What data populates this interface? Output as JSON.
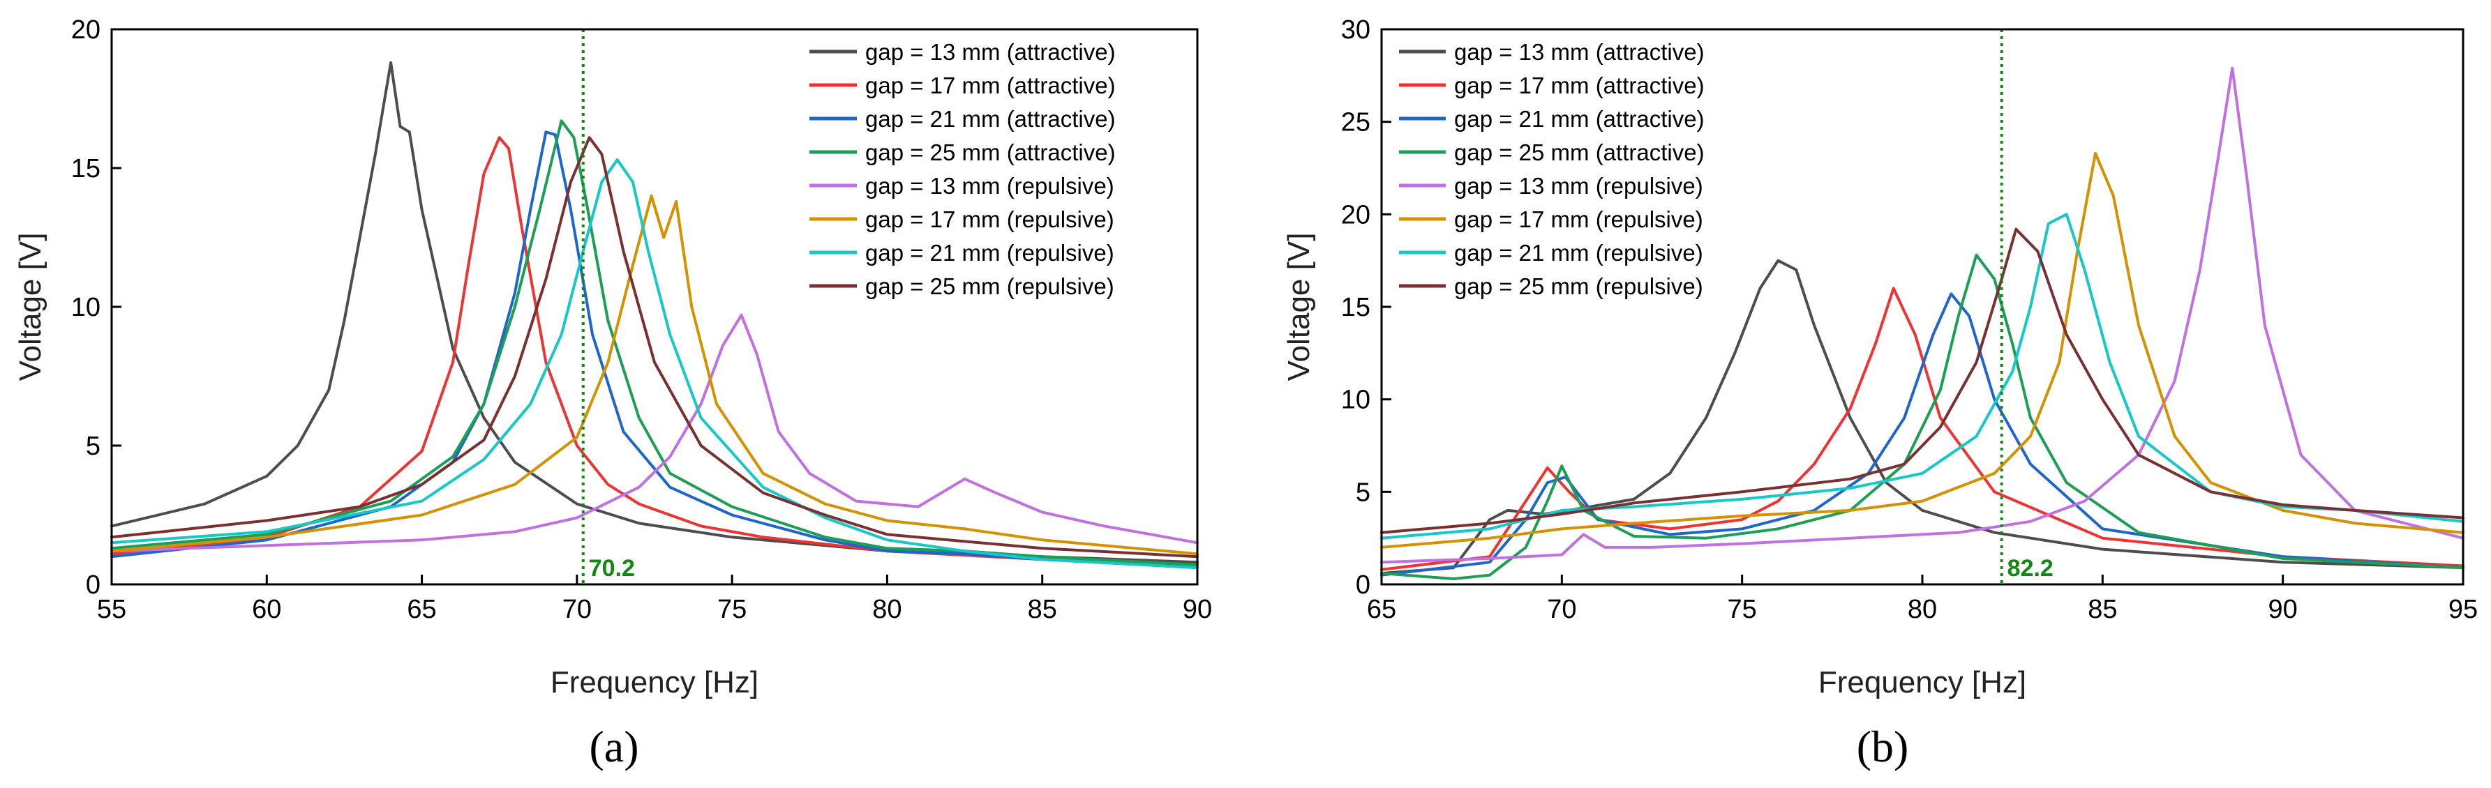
{
  "chart_data": [
    {
      "id": "a",
      "type": "line",
      "panel_label": "(a)",
      "xlabel": "Frequency [Hz]",
      "ylabel": "Voltage [V]",
      "xlim": [
        55,
        90
      ],
      "ylim": [
        0,
        20
      ],
      "xticks": [
        55,
        60,
        65,
        70,
        75,
        80,
        85,
        90
      ],
      "yticks": [
        0,
        5,
        10,
        15,
        20
      ],
      "legend_position": "top-right",
      "vline": {
        "x": 70.2,
        "label": "70.2",
        "color": "#118811"
      },
      "series": [
        {
          "name": "gap = 13 mm (attractive)",
          "color": "#4d4d4d",
          "x": [
            55,
            58,
            60,
            61,
            62,
            62.5,
            63,
            63.5,
            64,
            64.3,
            64.6,
            65,
            66,
            67,
            68,
            70,
            72,
            75,
            80,
            85,
            90
          ],
          "y": [
            2.1,
            2.9,
            3.9,
            5.0,
            7.0,
            9.5,
            12.5,
            15.5,
            18.8,
            16.5,
            16.3,
            13.5,
            8.5,
            6.0,
            4.4,
            2.9,
            2.2,
            1.7,
            1.2,
            1.0,
            0.8
          ]
        },
        {
          "name": "gap = 17 mm (attractive)",
          "color": "#ee3333",
          "x": [
            55,
            60,
            63,
            65,
            66,
            66.5,
            67,
            67.5,
            67.8,
            68.2,
            69,
            70,
            71,
            72,
            74,
            76,
            80,
            85,
            90
          ],
          "y": [
            1.1,
            1.7,
            2.8,
            4.8,
            8.0,
            11.5,
            14.8,
            16.1,
            15.7,
            13.0,
            8.0,
            5.0,
            3.6,
            2.9,
            2.1,
            1.7,
            1.2,
            0.9,
            0.7
          ]
        },
        {
          "name": "gap = 21 mm (attractive)",
          "color": "#1f66cc",
          "x": [
            55,
            60,
            64,
            66,
            67,
            68,
            68.5,
            69,
            69.3,
            69.8,
            70.5,
            71.5,
            73,
            75,
            78,
            80,
            82.5,
            85,
            90
          ],
          "y": [
            1.0,
            1.6,
            2.8,
            4.4,
            6.5,
            10.5,
            13.5,
            16.3,
            16.2,
            13.5,
            9.0,
            5.5,
            3.5,
            2.5,
            1.6,
            1.2,
            1.1,
            0.9,
            0.6
          ]
        },
        {
          "name": "gap = 25 mm (attractive)",
          "color": "#1a9f55",
          "x": [
            55,
            60,
            64,
            66,
            67,
            68,
            68.8,
            69.5,
            69.9,
            70.3,
            71,
            72,
            73,
            75,
            78,
            80,
            82.5,
            85,
            90
          ],
          "y": [
            1.3,
            1.8,
            3.0,
            4.6,
            6.5,
            10.0,
            13.5,
            16.7,
            16.1,
            13.8,
            9.5,
            6.0,
            4.0,
            2.8,
            1.7,
            1.3,
            1.2,
            1.0,
            0.7
          ]
        },
        {
          "name": "gap = 13 mm (repulsive)",
          "color": "#c070e0",
          "x": [
            55,
            60,
            65,
            68,
            70,
            72,
            73,
            74,
            74.7,
            75.3,
            75.8,
            76.5,
            77.5,
            79,
            81,
            82.5,
            83.5,
            85,
            87,
            90
          ],
          "y": [
            1.2,
            1.4,
            1.6,
            1.9,
            2.4,
            3.5,
            4.6,
            6.5,
            8.6,
            9.7,
            8.3,
            5.5,
            4.0,
            3.0,
            2.8,
            3.8,
            3.3,
            2.6,
            2.1,
            1.5
          ]
        },
        {
          "name": "gap = 17 mm (repulsive)",
          "color": "#d49100",
          "x": [
            55,
            60,
            65,
            68,
            70,
            71,
            71.8,
            72.4,
            72.8,
            73.2,
            73.7,
            74.5,
            76,
            78,
            80,
            82.5,
            85,
            90
          ],
          "y": [
            1.2,
            1.7,
            2.5,
            3.6,
            5.3,
            8.0,
            11.5,
            14.0,
            12.5,
            13.8,
            10.0,
            6.5,
            4.0,
            2.9,
            2.3,
            2.0,
            1.6,
            1.1
          ]
        },
        {
          "name": "gap = 21 mm (repulsive)",
          "color": "#16c8c8",
          "x": [
            55,
            60,
            65,
            67,
            68.5,
            69.5,
            70.2,
            70.8,
            71.3,
            71.8,
            72.3,
            73,
            74,
            76,
            78,
            80,
            82.5,
            85,
            90
          ],
          "y": [
            1.5,
            1.9,
            3.0,
            4.5,
            6.5,
            9.0,
            12.0,
            14.5,
            15.3,
            14.5,
            12.0,
            9.0,
            6.0,
            3.5,
            2.4,
            1.6,
            1.2,
            0.9,
            0.6
          ]
        },
        {
          "name": "gap = 25 mm (repulsive)",
          "color": "#7a3030",
          "x": [
            55,
            60,
            63,
            65,
            67,
            68,
            69,
            69.8,
            70.4,
            70.8,
            71.5,
            72.5,
            74,
            76,
            78,
            80,
            85,
            90
          ],
          "y": [
            1.7,
            2.3,
            2.8,
            3.6,
            5.2,
            7.5,
            11.0,
            14.5,
            16.1,
            15.5,
            12.0,
            8.0,
            5.0,
            3.3,
            2.5,
            1.8,
            1.3,
            1.0
          ]
        }
      ]
    },
    {
      "id": "b",
      "type": "line",
      "panel_label": "(b)",
      "xlabel": "Frequency [Hz]",
      "ylabel": "Voltage [V]",
      "xlim": [
        65,
        95
      ],
      "ylim": [
        0,
        30
      ],
      "xticks": [
        65,
        70,
        75,
        80,
        85,
        90,
        95
      ],
      "yticks": [
        0,
        5,
        10,
        15,
        20,
        25,
        30
      ],
      "legend_position": "top-left",
      "vline": {
        "x": 82.2,
        "label": "82.2",
        "color": "#118811"
      },
      "series": [
        {
          "name": "gap = 13 mm (attractive)",
          "color": "#4d4d4d",
          "x": [
            65,
            67,
            68,
            68.5,
            69.5,
            70.5,
            72,
            73,
            74,
            74.8,
            75.5,
            76,
            76.5,
            77,
            78,
            79,
            80,
            82,
            85,
            90,
            95
          ],
          "y": [
            0.6,
            0.9,
            3.5,
            4.0,
            3.8,
            4.1,
            4.6,
            6.0,
            9.0,
            12.5,
            16.0,
            17.5,
            17.0,
            14.0,
            9.0,
            5.5,
            4.0,
            2.8,
            1.9,
            1.2,
            0.9
          ]
        },
        {
          "name": "gap = 17 mm (attractive)",
          "color": "#ee3333",
          "x": [
            65,
            68,
            69,
            69.6,
            70.2,
            71,
            73,
            75,
            76,
            77,
            78,
            78.7,
            79.2,
            79.8,
            80.5,
            82,
            85,
            90,
            95
          ],
          "y": [
            0.8,
            1.5,
            4.5,
            6.3,
            5.0,
            3.5,
            3.0,
            3.5,
            4.5,
            6.5,
            9.5,
            13.0,
            16.0,
            13.5,
            9.0,
            5.0,
            2.5,
            1.5,
            1.0
          ]
        },
        {
          "name": "gap = 21 mm (attractive)",
          "color": "#1f66cc",
          "x": [
            65,
            68,
            69,
            69.6,
            70.1,
            71,
            73,
            75,
            77,
            78.5,
            79.5,
            80.3,
            80.8,
            81.3,
            82,
            83,
            85,
            90,
            95
          ],
          "y": [
            0.5,
            1.2,
            3.5,
            5.5,
            5.8,
            3.5,
            2.7,
            3.0,
            4.0,
            6.0,
            9.0,
            13.5,
            15.7,
            14.5,
            10.0,
            6.5,
            3.0,
            1.5,
            0.9
          ]
        },
        {
          "name": "gap = 25 mm (attractive)",
          "color": "#1a9f55",
          "x": [
            65,
            67,
            68,
            69,
            69.6,
            70,
            70.6,
            72,
            74,
            76,
            78,
            79.5,
            80.5,
            81,
            81.5,
            82,
            82.5,
            83,
            84,
            86,
            90,
            95
          ],
          "y": [
            0.6,
            0.3,
            0.5,
            2.0,
            4.5,
            6.4,
            4.0,
            2.6,
            2.5,
            3.0,
            4.0,
            6.5,
            10.5,
            14.5,
            17.8,
            16.5,
            13.0,
            9.0,
            5.5,
            2.8,
            1.4,
            0.9
          ]
        },
        {
          "name": "gap = 13 mm (repulsive)",
          "color": "#c070e0",
          "x": [
            65,
            68,
            70,
            70.6,
            71.2,
            72.5,
            75,
            78,
            81,
            83,
            84.5,
            86,
            87,
            87.7,
            88.2,
            88.6,
            89,
            89.5,
            90.5,
            92,
            95
          ],
          "y": [
            1.2,
            1.4,
            1.6,
            2.7,
            2.0,
            2.0,
            2.2,
            2.5,
            2.8,
            3.4,
            4.5,
            7.0,
            11.0,
            17.0,
            23.0,
            27.9,
            22.0,
            14.0,
            7.0,
            4.0,
            2.5
          ]
        },
        {
          "name": "gap = 17 mm (repulsive)",
          "color": "#d49100",
          "x": [
            65,
            68,
            70,
            72,
            75,
            78,
            80,
            82,
            83,
            83.8,
            84.3,
            84.8,
            85.3,
            86,
            87,
            88,
            90,
            92,
            95
          ],
          "y": [
            2.0,
            2.5,
            3.0,
            3.3,
            3.7,
            4.0,
            4.5,
            6.0,
            8.0,
            12.0,
            18.0,
            23.3,
            21.0,
            14.0,
            8.0,
            5.5,
            4.0,
            3.3,
            2.8
          ]
        },
        {
          "name": "gap = 21 mm (repulsive)",
          "color": "#16c8c8",
          "x": [
            65,
            68,
            70,
            72,
            75,
            78,
            80,
            81.5,
            82.5,
            83,
            83.5,
            84,
            84.5,
            85.2,
            86,
            88,
            90,
            92,
            95
          ],
          "y": [
            2.5,
            3.0,
            4.0,
            4.2,
            4.6,
            5.2,
            6.0,
            8.0,
            11.5,
            15.0,
            19.5,
            20.0,
            17.0,
            12.0,
            8.0,
            5.0,
            4.2,
            4.0,
            3.4
          ]
        },
        {
          "name": "gap = 25 mm (repulsive)",
          "color": "#7a3030",
          "x": [
            65,
            68,
            70,
            72,
            75,
            78,
            79.5,
            80.5,
            81.5,
            82.2,
            82.6,
            83.2,
            84,
            85,
            86,
            88,
            90,
            92,
            95
          ],
          "y": [
            2.8,
            3.3,
            3.8,
            4.4,
            5.0,
            5.7,
            6.5,
            8.5,
            12.0,
            16.5,
            19.2,
            18.0,
            13.5,
            10.0,
            7.0,
            5.0,
            4.3,
            4.0,
            3.6
          ]
        }
      ]
    }
  ]
}
